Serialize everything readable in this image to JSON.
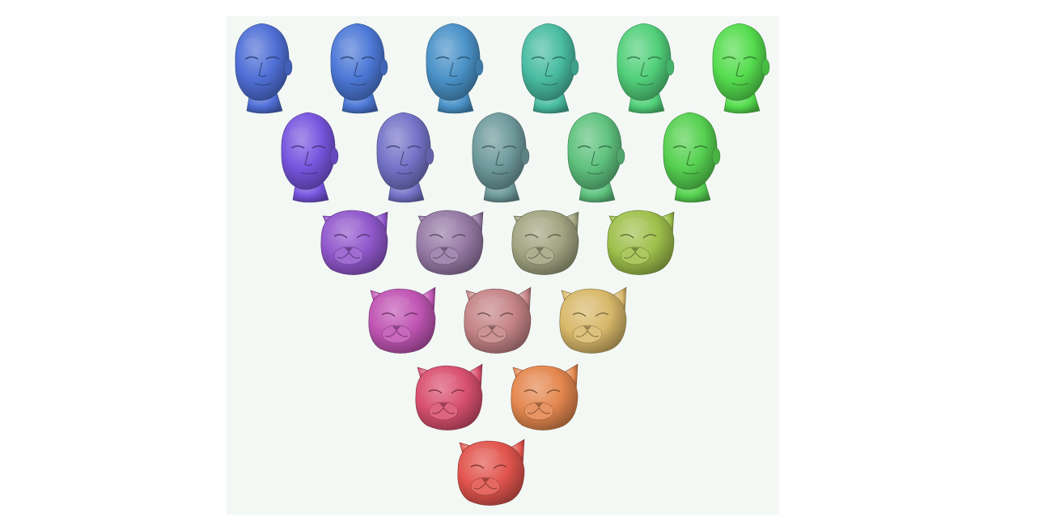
{
  "figure": {
    "panel_background": "#f3f8f5",
    "page_background": "#ffffff",
    "morph_grid": {
      "rows": [
        {
          "kind": "human",
          "colors": [
            "#4f6fd6",
            "#4c78d6",
            "#4a92c8",
            "#49bca2",
            "#52d07a",
            "#55dc4e"
          ]
        },
        {
          "kind": "human",
          "colors": [
            "#7755de",
            "#7473c8",
            "#6e9a9c",
            "#5fc27e",
            "#56d150"
          ]
        },
        {
          "kind": "blend",
          "colors": [
            "#9158cc",
            "#967aa6",
            "#a2a581",
            "#9fc04c"
          ]
        },
        {
          "kind": "feline",
          "colors": [
            "#c055b4",
            "#c58487",
            "#d8b86a"
          ]
        },
        {
          "kind": "feline",
          "colors": [
            "#d9506f",
            "#e4874f"
          ]
        },
        {
          "kind": "feline",
          "colors": [
            "#e1544d"
          ]
        }
      ]
    }
  }
}
